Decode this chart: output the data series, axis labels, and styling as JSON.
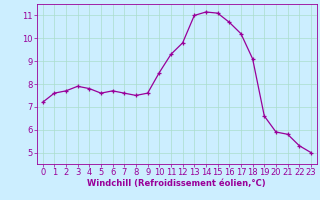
{
  "x": [
    0,
    1,
    2,
    3,
    4,
    5,
    6,
    7,
    8,
    9,
    10,
    11,
    12,
    13,
    14,
    15,
    16,
    17,
    18,
    19,
    20,
    21,
    22,
    23
  ],
  "y": [
    7.2,
    7.6,
    7.7,
    7.9,
    7.8,
    7.6,
    7.7,
    7.6,
    7.5,
    7.6,
    8.5,
    9.3,
    9.8,
    11.0,
    11.15,
    11.1,
    10.7,
    10.2,
    9.1,
    6.6,
    5.9,
    5.8,
    5.3,
    5.0
  ],
  "line_color": "#990099",
  "marker": "+",
  "marker_size": 3,
  "bg_color": "#cceeff",
  "grid_color": "#aaddcc",
  "xlabel": "Windchill (Refroidissement éolien,°C)",
  "ylim": [
    4.5,
    11.5
  ],
  "xlim": [
    -0.5,
    23.5
  ],
  "yticks": [
    5,
    6,
    7,
    8,
    9,
    10,
    11
  ],
  "xticks": [
    0,
    1,
    2,
    3,
    4,
    5,
    6,
    7,
    8,
    9,
    10,
    11,
    12,
    13,
    14,
    15,
    16,
    17,
    18,
    19,
    20,
    21,
    22,
    23
  ],
  "tick_color": "#990099",
  "label_color": "#990099",
  "label_fontsize": 6.0,
  "tick_fontsize": 6.0,
  "spine_color": "#990099"
}
